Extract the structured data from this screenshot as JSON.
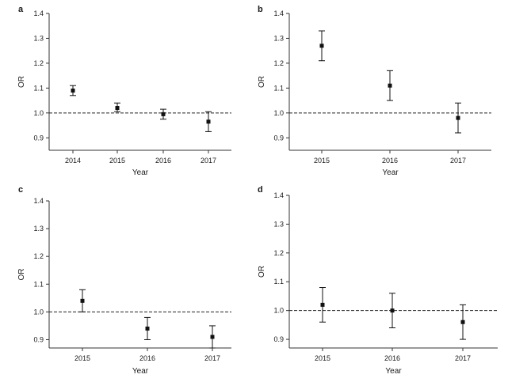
{
  "chart_data": [
    {
      "panel": "a",
      "type": "scatter",
      "xlabel": "Year",
      "ylabel": "OR",
      "ylim": [
        0.85,
        1.4
      ],
      "yticks": [
        0.9,
        1.0,
        1.1,
        1.2,
        1.3,
        1.4
      ],
      "reference_line": 1.0,
      "categories": [
        "2014",
        "2015",
        "2016",
        "2017"
      ],
      "values": [
        1.09,
        1.02,
        0.995,
        0.965
      ],
      "ci_low": [
        1.07,
        1.005,
        0.975,
        0.925
      ],
      "ci_high": [
        1.11,
        1.04,
        1.015,
        1.005
      ]
    },
    {
      "panel": "b",
      "type": "scatter",
      "xlabel": "Year",
      "ylabel": "OR",
      "ylim": [
        0.85,
        1.4
      ],
      "yticks": [
        0.9,
        1.0,
        1.1,
        1.2,
        1.3,
        1.4
      ],
      "reference_line": 1.0,
      "categories": [
        "2015",
        "2016",
        "2017"
      ],
      "values": [
        1.27,
        1.11,
        0.98
      ],
      "ci_low": [
        1.21,
        1.05,
        0.92
      ],
      "ci_high": [
        1.33,
        1.17,
        1.04
      ]
    },
    {
      "panel": "c",
      "type": "scatter",
      "xlabel": "Year",
      "ylabel": "OR",
      "ylim": [
        0.87,
        1.4
      ],
      "yticks": [
        0.9,
        1.0,
        1.1,
        1.2,
        1.3,
        1.4
      ],
      "reference_line": 1.0,
      "categories": [
        "2015",
        "2016",
        "2017"
      ],
      "values": [
        1.04,
        0.94,
        0.91
      ],
      "ci_low": [
        1.0,
        0.9,
        0.87
      ],
      "ci_high": [
        1.08,
        0.98,
        0.95
      ]
    },
    {
      "panel": "d",
      "type": "scatter",
      "xlabel": "Year",
      "ylabel": "OR",
      "ylim": [
        0.87,
        1.4
      ],
      "yticks": [
        0.9,
        1.0,
        1.1,
        1.2,
        1.3,
        1.4
      ],
      "reference_line": 1.0,
      "categories": [
        "2015",
        "2016",
        "2017"
      ],
      "values": [
        1.02,
        1.0,
        0.96
      ],
      "ci_low": [
        0.96,
        0.94,
        0.9
      ],
      "ci_high": [
        1.08,
        1.06,
        1.02
      ]
    }
  ]
}
